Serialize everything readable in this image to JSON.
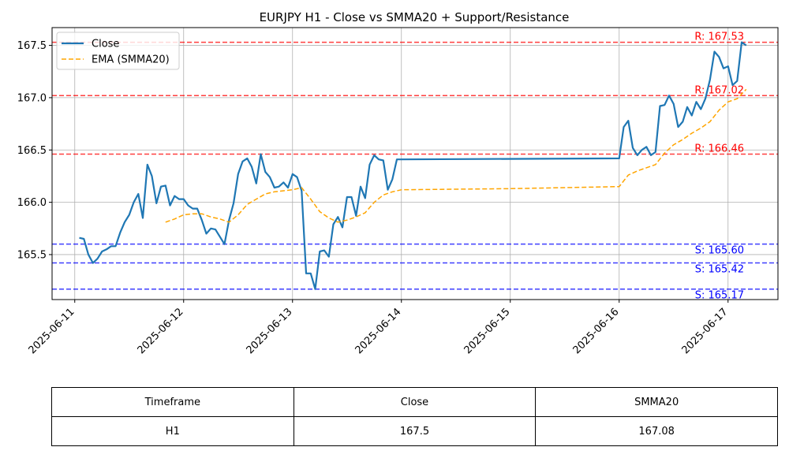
{
  "chart_data": {
    "type": "line",
    "title": "EURJPY H1 - Close vs SMMA20 + Support/Resistance",
    "ylim": [
      165.07,
      167.67
    ],
    "yticks": [
      "165.5",
      "166.0",
      "166.5",
      "167.0",
      "167.5"
    ],
    "xlim": [
      "2025-06-10T19:00",
      "2025-06-17T11:00"
    ],
    "xticks": [
      "2025-06-11",
      "2025-06-12",
      "2025-06-13",
      "2025-06-14",
      "2025-06-15",
      "2025-06-16",
      "2025-06-17"
    ],
    "grid": true,
    "legend_position": "top-left",
    "series": [
      {
        "name": "Close",
        "color": "#1f77b4",
        "style": "solid",
        "points": [
          [
            "2025-06-11T01:00",
            165.66
          ],
          [
            "2025-06-11T02:00",
            165.65
          ],
          [
            "2025-06-11T03:00",
            165.5
          ],
          [
            "2025-06-11T04:00",
            165.42
          ],
          [
            "2025-06-11T05:00",
            165.46
          ],
          [
            "2025-06-11T06:00",
            165.53
          ],
          [
            "2025-06-11T07:00",
            165.55
          ],
          [
            "2025-06-11T08:00",
            165.58
          ],
          [
            "2025-06-11T09:00",
            165.58
          ],
          [
            "2025-06-11T10:00",
            165.71
          ],
          [
            "2025-06-11T11:00",
            165.81
          ],
          [
            "2025-06-11T12:00",
            165.88
          ],
          [
            "2025-06-11T13:00",
            166.0
          ],
          [
            "2025-06-11T14:00",
            166.08
          ],
          [
            "2025-06-11T15:00",
            165.85
          ],
          [
            "2025-06-11T16:00",
            166.36
          ],
          [
            "2025-06-11T17:00",
            166.25
          ],
          [
            "2025-06-11T18:00",
            165.99
          ],
          [
            "2025-06-11T19:00",
            166.15
          ],
          [
            "2025-06-11T20:00",
            166.16
          ],
          [
            "2025-06-11T21:00",
            165.97
          ],
          [
            "2025-06-11T22:00",
            166.06
          ],
          [
            "2025-06-11T23:00",
            166.03
          ],
          [
            "2025-06-12T00:00",
            166.03
          ],
          [
            "2025-06-12T01:00",
            165.97
          ],
          [
            "2025-06-12T02:00",
            165.94
          ],
          [
            "2025-06-12T03:00",
            165.94
          ],
          [
            "2025-06-12T04:00",
            165.83
          ],
          [
            "2025-06-12T05:00",
            165.7
          ],
          [
            "2025-06-12T06:00",
            165.75
          ],
          [
            "2025-06-12T07:00",
            165.74
          ],
          [
            "2025-06-12T08:00",
            165.67
          ],
          [
            "2025-06-12T09:00",
            165.6
          ],
          [
            "2025-06-12T10:00",
            165.83
          ],
          [
            "2025-06-12T11:00",
            165.99
          ],
          [
            "2025-06-12T12:00",
            166.27
          ],
          [
            "2025-06-12T13:00",
            166.39
          ],
          [
            "2025-06-12T14:00",
            166.42
          ],
          [
            "2025-06-12T15:00",
            166.34
          ],
          [
            "2025-06-12T16:00",
            166.18
          ],
          [
            "2025-06-12T17:00",
            166.46
          ],
          [
            "2025-06-12T18:00",
            166.29
          ],
          [
            "2025-06-12T19:00",
            166.24
          ],
          [
            "2025-06-12T20:00",
            166.14
          ],
          [
            "2025-06-12T21:00",
            166.15
          ],
          [
            "2025-06-12T22:00",
            166.19
          ],
          [
            "2025-06-12T23:00",
            166.14
          ],
          [
            "2025-06-13T00:00",
            166.27
          ],
          [
            "2025-06-13T01:00",
            166.24
          ],
          [
            "2025-06-13T02:00",
            166.11
          ],
          [
            "2025-06-13T03:00",
            165.32
          ],
          [
            "2025-06-13T04:00",
            165.32
          ],
          [
            "2025-06-13T05:00",
            165.17
          ],
          [
            "2025-06-13T06:00",
            165.53
          ],
          [
            "2025-06-13T07:00",
            165.54
          ],
          [
            "2025-06-13T08:00",
            165.48
          ],
          [
            "2025-06-13T09:00",
            165.79
          ],
          [
            "2025-06-13T10:00",
            165.86
          ],
          [
            "2025-06-13T11:00",
            165.76
          ],
          [
            "2025-06-13T12:00",
            166.05
          ],
          [
            "2025-06-13T13:00",
            166.05
          ],
          [
            "2025-06-13T14:00",
            165.87
          ],
          [
            "2025-06-13T15:00",
            166.15
          ],
          [
            "2025-06-13T16:00",
            166.04
          ],
          [
            "2025-06-13T17:00",
            166.36
          ],
          [
            "2025-06-13T18:00",
            166.45
          ],
          [
            "2025-06-13T19:00",
            166.41
          ],
          [
            "2025-06-13T20:00",
            166.4
          ],
          [
            "2025-06-13T21:00",
            166.12
          ],
          [
            "2025-06-13T22:00",
            166.22
          ],
          [
            "2025-06-13T23:00",
            166.41
          ],
          [
            "2025-06-16T00:00",
            166.42
          ],
          [
            "2025-06-16T01:00",
            166.72
          ],
          [
            "2025-06-16T02:00",
            166.78
          ],
          [
            "2025-06-16T03:00",
            166.52
          ],
          [
            "2025-06-16T04:00",
            166.45
          ],
          [
            "2025-06-16T05:00",
            166.5
          ],
          [
            "2025-06-16T06:00",
            166.53
          ],
          [
            "2025-06-16T07:00",
            166.45
          ],
          [
            "2025-06-16T08:00",
            166.48
          ],
          [
            "2025-06-16T09:00",
            166.92
          ],
          [
            "2025-06-16T10:00",
            166.93
          ],
          [
            "2025-06-16T11:00",
            167.02
          ],
          [
            "2025-06-16T12:00",
            166.94
          ],
          [
            "2025-06-16T13:00",
            166.72
          ],
          [
            "2025-06-16T14:00",
            166.77
          ],
          [
            "2025-06-16T15:00",
            166.91
          ],
          [
            "2025-06-16T16:00",
            166.83
          ],
          [
            "2025-06-16T17:00",
            166.96
          ],
          [
            "2025-06-16T18:00",
            166.89
          ],
          [
            "2025-06-16T19:00",
            166.99
          ],
          [
            "2025-06-16T20:00",
            167.17
          ],
          [
            "2025-06-16T21:00",
            167.44
          ],
          [
            "2025-06-16T22:00",
            167.39
          ],
          [
            "2025-06-16T23:00",
            167.28
          ],
          [
            "2025-06-17T00:00",
            167.3
          ],
          [
            "2025-06-17T01:00",
            167.12
          ],
          [
            "2025-06-17T02:00",
            167.16
          ],
          [
            "2025-06-17T03:00",
            167.53
          ],
          [
            "2025-06-17T04:00",
            167.5
          ]
        ]
      },
      {
        "name": "EMA (SMMA20)",
        "color": "#ffa500",
        "style": "dashed",
        "points": [
          [
            "2025-06-11T20:00",
            165.81
          ],
          [
            "2025-06-11T22:00",
            165.84
          ],
          [
            "2025-06-12T00:00",
            165.88
          ],
          [
            "2025-06-12T02:00",
            165.89
          ],
          [
            "2025-06-12T04:00",
            165.89
          ],
          [
            "2025-06-12T06:00",
            165.86
          ],
          [
            "2025-06-12T08:00",
            165.84
          ],
          [
            "2025-06-12T10:00",
            165.81
          ],
          [
            "2025-06-12T12:00",
            165.88
          ],
          [
            "2025-06-12T14:00",
            165.98
          ],
          [
            "2025-06-12T16:00",
            166.03
          ],
          [
            "2025-06-12T18:00",
            166.08
          ],
          [
            "2025-06-12T20:00",
            166.1
          ],
          [
            "2025-06-12T22:00",
            166.11
          ],
          [
            "2025-06-13T00:00",
            166.12
          ],
          [
            "2025-06-13T02:00",
            166.14
          ],
          [
            "2025-06-13T04:00",
            166.03
          ],
          [
            "2025-06-13T06:00",
            165.91
          ],
          [
            "2025-06-13T08:00",
            165.85
          ],
          [
            "2025-06-13T10:00",
            165.81
          ],
          [
            "2025-06-13T12:00",
            165.83
          ],
          [
            "2025-06-13T14:00",
            165.86
          ],
          [
            "2025-06-13T16:00",
            165.9
          ],
          [
            "2025-06-13T18:00",
            166.0
          ],
          [
            "2025-06-13T20:00",
            166.07
          ],
          [
            "2025-06-13T22:00",
            166.1
          ],
          [
            "2025-06-14T00:00",
            166.12
          ],
          [
            "2025-06-15T00:00",
            166.13
          ],
          [
            "2025-06-16T00:00",
            166.15
          ],
          [
            "2025-06-16T02:00",
            166.26
          ],
          [
            "2025-06-16T04:00",
            166.3
          ],
          [
            "2025-06-16T06:00",
            166.33
          ],
          [
            "2025-06-16T08:00",
            166.36
          ],
          [
            "2025-06-16T10:00",
            166.47
          ],
          [
            "2025-06-16T12:00",
            166.55
          ],
          [
            "2025-06-16T14:00",
            166.6
          ],
          [
            "2025-06-16T16:00",
            166.66
          ],
          [
            "2025-06-16T18:00",
            166.71
          ],
          [
            "2025-06-16T20:00",
            166.77
          ],
          [
            "2025-06-16T22:00",
            166.88
          ],
          [
            "2025-06-17T00:00",
            166.96
          ],
          [
            "2025-06-17T02:00",
            166.99
          ],
          [
            "2025-06-17T04:00",
            167.08
          ]
        ]
      }
    ],
    "levels": [
      {
        "kind": "resistance",
        "value": 167.53,
        "label": "R: 167.53",
        "color": "#ff0000"
      },
      {
        "kind": "resistance",
        "value": 167.02,
        "label": "R: 167.02",
        "color": "#ff0000"
      },
      {
        "kind": "resistance",
        "value": 166.46,
        "label": "R: 166.46",
        "color": "#ff0000"
      },
      {
        "kind": "support",
        "value": 165.6,
        "label": "S: 165.60",
        "color": "#0000ff"
      },
      {
        "kind": "support",
        "value": 165.42,
        "label": "S: 165.42",
        "color": "#0000ff"
      },
      {
        "kind": "support",
        "value": 165.17,
        "label": "S: 165.17",
        "color": "#0000ff"
      }
    ]
  },
  "table": {
    "headers": [
      "Timeframe",
      "Close",
      "SMMA20"
    ],
    "row": [
      "H1",
      "167.5",
      "167.08"
    ]
  }
}
